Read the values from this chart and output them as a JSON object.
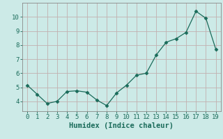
{
  "x": [
    0,
    1,
    2,
    3,
    4,
    5,
    6,
    7,
    8,
    9,
    10,
    11,
    12,
    13,
    14,
    15,
    16,
    17,
    18,
    19
  ],
  "y": [
    5.15,
    4.5,
    3.85,
    4.0,
    4.7,
    4.75,
    4.65,
    4.1,
    3.7,
    4.6,
    5.15,
    5.85,
    6.0,
    7.3,
    8.2,
    8.45,
    8.9,
    10.4,
    9.9,
    7.7
  ],
  "line_color": "#1a6b5a",
  "marker": "D",
  "marker_size": 2.5,
  "bg_color": "#cceae7",
  "grid_color": "#c2b0b0",
  "xlabel": "Humidex (Indice chaleur)",
  "xlabel_color": "#1a6b5a",
  "ylim": [
    3.3,
    11.0
  ],
  "xlim": [
    -0.5,
    19.5
  ],
  "yticks": [
    4,
    5,
    6,
    7,
    8,
    9,
    10
  ],
  "xticks": [
    0,
    1,
    2,
    3,
    4,
    5,
    6,
    7,
    8,
    9,
    10,
    11,
    12,
    13,
    14,
    15,
    16,
    17,
    18,
    19
  ],
  "tick_color": "#1a6b5a",
  "spine_color": "#888888",
  "font_family": "monospace",
  "xlabel_fontsize": 7.5,
  "tick_labelsize": 6.5
}
